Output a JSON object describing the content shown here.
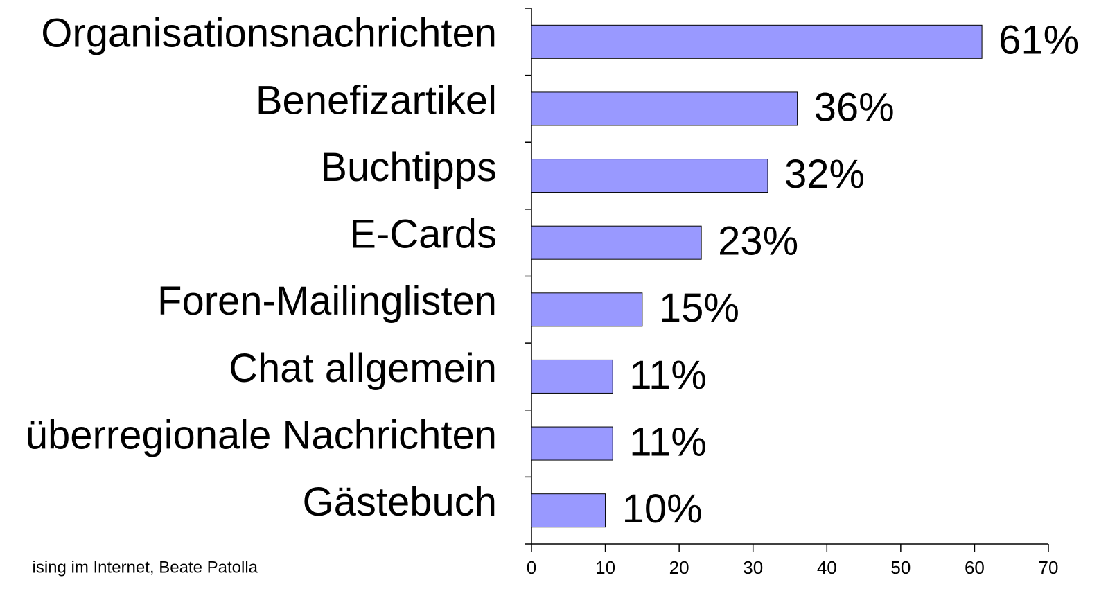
{
  "chart_data": {
    "type": "bar",
    "orientation": "horizontal",
    "categories": [
      "Organisationsnachrichten",
      "Benefizartikel",
      "Buchtipps",
      "E-Cards",
      "Foren-Mailinglisten",
      "Chat allgemein",
      "überregionale Nachrichten",
      "Gästebuch"
    ],
    "values": [
      61,
      36,
      32,
      23,
      15,
      11,
      11,
      10
    ],
    "value_labels": [
      "61%",
      "36%",
      "32%",
      "23%",
      "15%",
      "11%",
      "11%",
      "10%"
    ],
    "color": "#9999ff",
    "xlim": [
      0,
      70
    ],
    "xticks": [
      0,
      10,
      20,
      30,
      40,
      50,
      60,
      70
    ],
    "footer": "ising im Internet, Beate Patolla"
  }
}
